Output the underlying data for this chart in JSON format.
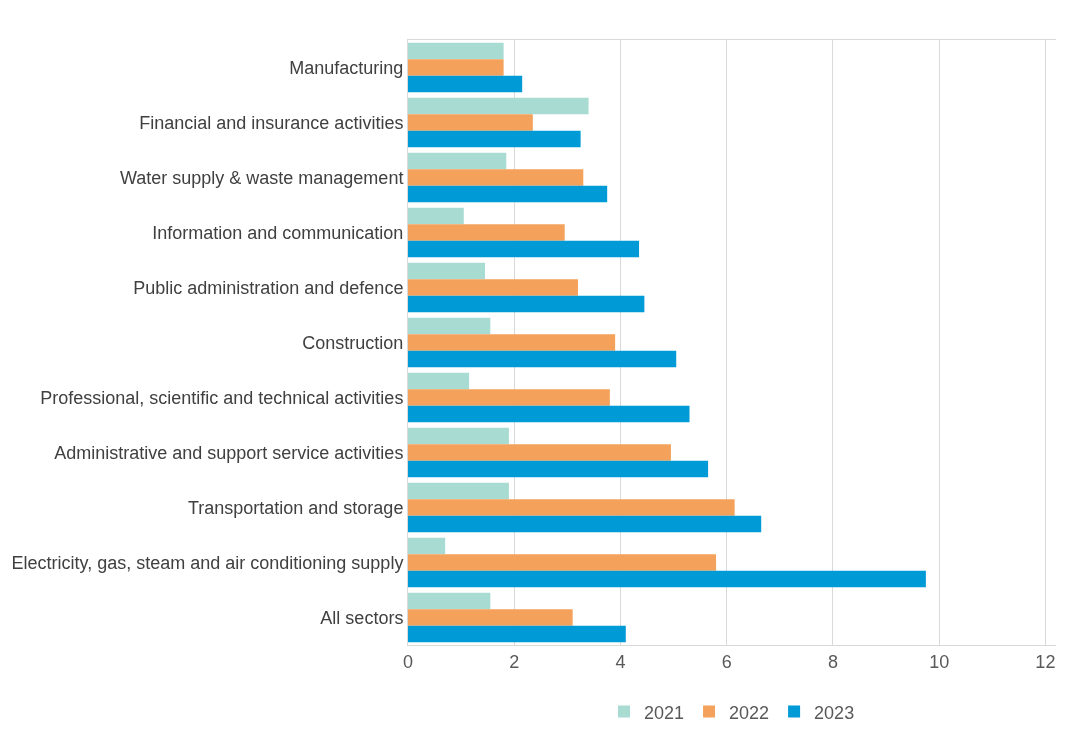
{
  "chart_data": {
    "type": "bar",
    "orientation": "horizontal",
    "categories": [
      "Manufacturing",
      "Financial and insurance activities",
      "Water supply & waste management",
      "Information and communication",
      "Public administration and defence",
      "Construction",
      "Professional, scientific and technical activities",
      "Administrative and support service activities",
      "Transportation and storage",
      "Electricity, gas, steam and air conditioning supply",
      "All sectors"
    ],
    "series": [
      {
        "name": "2021",
        "color": "#a8dbd1",
        "values": [
          1.8,
          3.4,
          1.85,
          1.05,
          1.45,
          1.55,
          1.15,
          1.9,
          1.9,
          0.7,
          1.55
        ]
      },
      {
        "name": "2022",
        "color": "#f4a25b",
        "values": [
          1.8,
          2.35,
          3.3,
          2.95,
          3.2,
          3.9,
          3.8,
          4.95,
          6.15,
          5.8,
          3.1
        ]
      },
      {
        "name": "2023",
        "color": "#009ad6",
        "values": [
          2.15,
          3.25,
          3.75,
          4.35,
          4.45,
          5.05,
          5.3,
          5.65,
          6.65,
          9.75,
          4.1
        ]
      }
    ],
    "xlim": [
      0,
      12.2
    ],
    "xticks": [
      0,
      2,
      4,
      6,
      8,
      10,
      12
    ],
    "grid": "x",
    "legend": "bottom"
  }
}
